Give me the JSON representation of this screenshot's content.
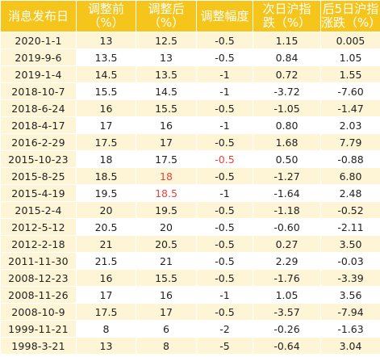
{
  "table": {
    "headers": [
      "消息发布日",
      "调整前\n（%）",
      "调整后\n（%）",
      "调整幅度",
      "次日沪指\n跌（%）",
      "后5日沪指\n涨跌（%）"
    ],
    "rows": [
      [
        "2020-1-1",
        "13",
        "12.5",
        "-0.5",
        "1.15",
        "0.005"
      ],
      [
        "2019-9-6",
        "13.5",
        "13",
        "-0.5",
        "0.84",
        "1.05"
      ],
      [
        "2019-1-4",
        "14.5",
        "13.5",
        "-1",
        "0.72",
        "1.55"
      ],
      [
        "2018-10-7",
        "15.5",
        "14.5",
        "-1",
        "-3.72",
        "-7.60"
      ],
      [
        "2018-6-24",
        "16",
        "15.5",
        "-0.5",
        "-1.05",
        "-1.47"
      ],
      [
        "2018-4-17",
        "17",
        "16",
        "-1",
        "0.80",
        "2.03"
      ],
      [
        "2016-2-29",
        "17.5",
        "17",
        "-0.5",
        "1.68",
        "7.79"
      ],
      [
        "2015-10-23",
        "18",
        "17.5",
        "-0.5",
        "0.50",
        "-0.88"
      ],
      [
        "2015-8-25",
        "18.5",
        "18",
        "-0.5",
        "-1.27",
        "6.80"
      ],
      [
        "2015-4-19",
        "19.5",
        "18.5",
        "-1",
        "-1.64",
        "2.48"
      ],
      [
        "2015-2-4",
        "20",
        "19.5",
        "-0.5",
        "-1.18",
        "-0.52"
      ],
      [
        "2012-5-12",
        "20.5",
        "20",
        "-0.5",
        "-0.60",
        "-2.11"
      ],
      [
        "2012-2-18",
        "21",
        "20.5",
        "-0.5",
        "0.27",
        "3.50"
      ],
      [
        "2011-11-30",
        "21.5",
        "21",
        "-0.5",
        "2.29",
        "-0.03"
      ],
      [
        "2008-12-23",
        "16",
        "15.5",
        "-0.5",
        "-1.76",
        "-3.39"
      ],
      [
        "2008-11-26",
        "17",
        "16",
        "-1",
        "1.05",
        "3.56"
      ],
      [
        "2008-10-9",
        "17.5",
        "17",
        "-0.5",
        "-3.57",
        "-7.94"
      ],
      [
        "1999-11-21",
        "8",
        "6",
        "-2",
        "-0.26",
        "-1.63"
      ],
      [
        "1998-3-21",
        "13",
        "8",
        "-5",
        "-0.64",
        "3.04"
      ]
    ],
    "red_cells": [
      [
        7,
        3
      ],
      [
        8,
        2
      ],
      [
        9,
        2
      ]
    ]
  },
  "colors": {
    "header_bg": "#f6c51b",
    "header_text": "#ffffff",
    "band_bg": "#fdf5d6",
    "highlight_text": "#e8423a"
  }
}
